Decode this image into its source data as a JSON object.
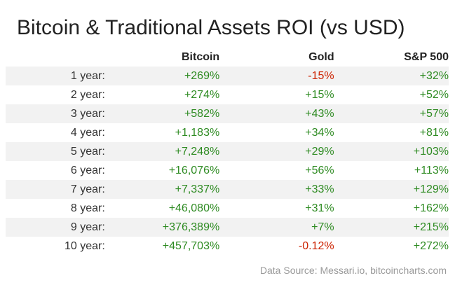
{
  "chart_data": {
    "type": "table",
    "title": "Bitcoin & Traditional Assets ROI (vs USD)",
    "columns": [
      "",
      "Bitcoin",
      "Gold",
      "S&P 500"
    ],
    "rows": [
      {
        "label": "1 year:",
        "values": [
          "+269%",
          "-15%",
          "+32%"
        ]
      },
      {
        "label": "2 year:",
        "values": [
          "+274%",
          "+15%",
          "+52%"
        ]
      },
      {
        "label": "3 year:",
        "values": [
          "+582%",
          "+43%",
          "+57%"
        ]
      },
      {
        "label": "4 year:",
        "values": [
          "+1,183%",
          "+34%",
          "+81%"
        ]
      },
      {
        "label": "5 year:",
        "values": [
          "+7,248%",
          "+29%",
          "+103%"
        ]
      },
      {
        "label": "6 year:",
        "values": [
          "+16,076%",
          "+56%",
          "+113%"
        ]
      },
      {
        "label": "7 year:",
        "values": [
          "+7,337%",
          "+33%",
          "+129%"
        ]
      },
      {
        "label": "8 year:",
        "values": [
          "+46,080%",
          "+31%",
          "+162%"
        ]
      },
      {
        "label": "9 year:",
        "values": [
          "+376,389%",
          "+7%",
          "+215%"
        ]
      },
      {
        "label": "10 year:",
        "values": [
          "+457,703%",
          "-0.12%",
          "+272%"
        ]
      }
    ],
    "source": "Data Source: Messari.io, bitcoincharts.com"
  },
  "colors": {
    "positive": "#2e8b22",
    "negative": "#cc2200",
    "stripe": "#f2f2f2"
  }
}
